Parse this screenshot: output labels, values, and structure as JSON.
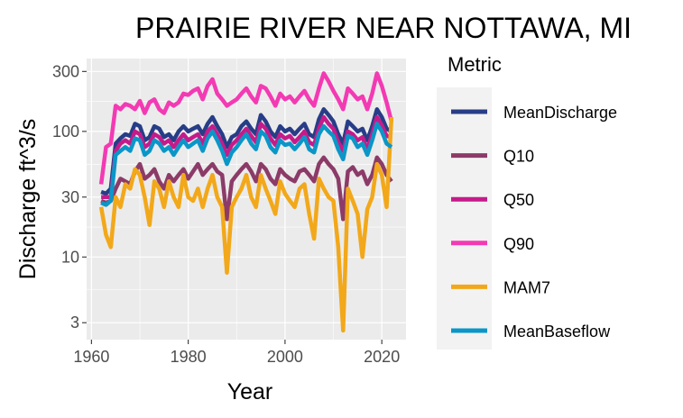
{
  "chart_data": {
    "type": "line",
    "title": "PRAIRIE RIVER NEAR NOTTAWA, MI",
    "xlabel": "Year",
    "ylabel": "Discharge ft^3/s",
    "y_scale": "log10",
    "xlim": [
      1959,
      2025
    ],
    "ylim": [
      2.2,
      380
    ],
    "x_ticks": [
      1960,
      1980,
      2000,
      2020
    ],
    "x_tick_labels": [
      "1960",
      "1980",
      "2000",
      "2020"
    ],
    "y_ticks": [
      3,
      10,
      30,
      100,
      300
    ],
    "y_tick_labels": [
      "3",
      "10",
      "30",
      "100",
      "300"
    ],
    "grid": true,
    "legend": {
      "title": "Metric",
      "position": "right"
    },
    "x": [
      1962,
      1963,
      1964,
      1965,
      1966,
      1967,
      1968,
      1969,
      1970,
      1971,
      1972,
      1973,
      1974,
      1975,
      1976,
      1977,
      1978,
      1979,
      1980,
      1981,
      1982,
      1983,
      1984,
      1985,
      1986,
      1987,
      1988,
      1989,
      1990,
      1991,
      1992,
      1993,
      1994,
      1995,
      1996,
      1997,
      1998,
      1999,
      2000,
      2001,
      2002,
      2003,
      2004,
      2005,
      2006,
      2007,
      2008,
      2009,
      2010,
      2011,
      2012,
      2013,
      2014,
      2015,
      2016,
      2017,
      2018,
      2019,
      2020,
      2021,
      2022
    ],
    "series": [
      {
        "name": "MeanDischarge",
        "color": "#273d87",
        "values": [
          33,
          32,
          35,
          80,
          88,
          95,
          92,
          115,
          110,
          85,
          90,
          110,
          105,
          90,
          95,
          85,
          100,
          110,
          100,
          105,
          110,
          95,
          115,
          130,
          110,
          95,
          75,
          90,
          95,
          110,
          120,
          105,
          95,
          135,
          120,
          100,
          90,
          110,
          100,
          105,
          95,
          105,
          115,
          95,
          90,
          125,
          150,
          135,
          120,
          95,
          80,
          120,
          110,
          100,
          105,
          85,
          110,
          150,
          130,
          105,
          100
        ]
      },
      {
        "name": "Q10",
        "color": "#8c3b68",
        "values": [
          28,
          27,
          28,
          35,
          42,
          40,
          38,
          48,
          55,
          42,
          45,
          50,
          40,
          35,
          45,
          40,
          45,
          50,
          42,
          48,
          55,
          45,
          50,
          55,
          48,
          45,
          20,
          40,
          45,
          50,
          55,
          48,
          40,
          55,
          50,
          42,
          38,
          50,
          45,
          42,
          40,
          48,
          50,
          45,
          40,
          55,
          62,
          55,
          50,
          42,
          20,
          48,
          52,
          45,
          48,
          38,
          45,
          62,
          55,
          45,
          40
        ]
      },
      {
        "name": "Q50",
        "color": "#c51b8a",
        "values": [
          30,
          30,
          30,
          70,
          80,
          85,
          80,
          100,
          95,
          75,
          80,
          95,
          90,
          80,
          85,
          75,
          85,
          95,
          85,
          90,
          95,
          80,
          100,
          110,
          95,
          80,
          65,
          78,
          85,
          95,
          105,
          92,
          82,
          115,
          105,
          88,
          78,
          95,
          88,
          92,
          82,
          90,
          100,
          82,
          78,
          105,
          130,
          115,
          105,
          82,
          70,
          100,
          95,
          85,
          90,
          72,
          95,
          130,
          112,
          92,
          90
        ]
      },
      {
        "name": "Q90",
        "color": "#f33ab3",
        "values": [
          38,
          75,
          80,
          160,
          150,
          165,
          160,
          150,
          175,
          140,
          170,
          180,
          150,
          140,
          170,
          160,
          170,
          200,
          195,
          210,
          220,
          180,
          230,
          260,
          200,
          180,
          160,
          170,
          180,
          200,
          220,
          190,
          170,
          230,
          220,
          190,
          160,
          200,
          180,
          190,
          170,
          190,
          210,
          180,
          160,
          220,
          290,
          250,
          210,
          180,
          150,
          220,
          200,
          180,
          190,
          150,
          200,
          290,
          230,
          170,
          120
        ]
      },
      {
        "name": "MAM7",
        "color": "#f2a81a",
        "values": [
          25,
          15,
          12,
          30,
          25,
          38,
          35,
          50,
          45,
          30,
          18,
          40,
          35,
          25,
          40,
          30,
          25,
          45,
          30,
          28,
          35,
          25,
          35,
          45,
          30,
          25,
          7.5,
          25,
          30,
          35,
          45,
          30,
          25,
          45,
          35,
          28,
          22,
          40,
          32,
          28,
          25,
          35,
          38,
          22,
          14,
          42,
          35,
          30,
          28,
          12,
          2.6,
          35,
          28,
          22,
          10,
          24,
          30,
          55,
          45,
          25,
          130
        ]
      },
      {
        "name": "MeanBaseflow",
        "color": "#0b96c8",
        "values": [
          27,
          26,
          28,
          65,
          70,
          75,
          70,
          88,
          85,
          65,
          70,
          85,
          80,
          70,
          75,
          65,
          75,
          85,
          75,
          80,
          85,
          70,
          88,
          100,
          85,
          70,
          55,
          68,
          75,
          85,
          95,
          80,
          72,
          100,
          92,
          75,
          68,
          85,
          78,
          80,
          72,
          80,
          90,
          72,
          68,
          95,
          110,
          100,
          92,
          72,
          60,
          92,
          88,
          75,
          80,
          65,
          85,
          115,
          100,
          80,
          75
        ]
      }
    ]
  }
}
